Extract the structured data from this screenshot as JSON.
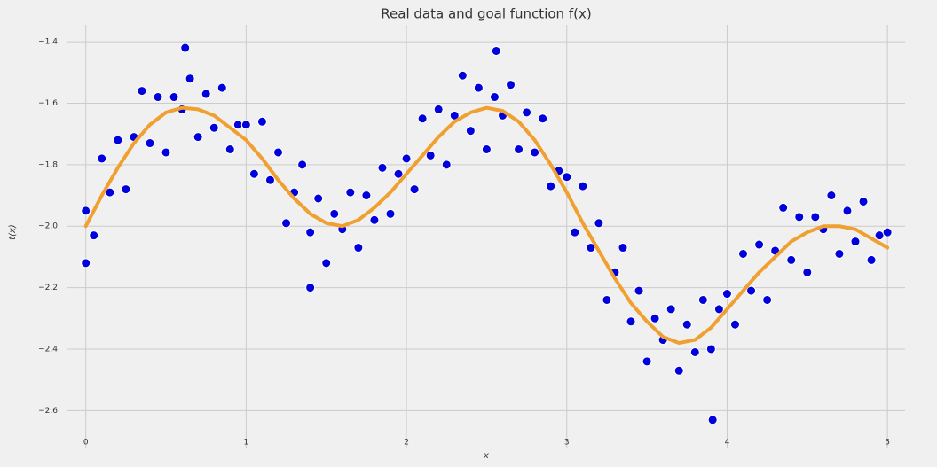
{
  "chart_data": {
    "type": "scatter",
    "title": "Real data and goal function f(x)",
    "xlabel": "x",
    "ylabel": "t(x)",
    "xlim": [
      -0.12,
      5.11
    ],
    "ylim": [
      -2.72,
      -1.345
    ],
    "xticks": [
      0,
      1,
      2,
      3,
      4,
      5
    ],
    "yticks": [
      {
        "value": -1.4,
        "label": "−1.4"
      },
      {
        "value": -1.6,
        "label": "−1.6"
      },
      {
        "value": -1.8,
        "label": "−1.8"
      },
      {
        "value": -2.0,
        "label": "−2.0"
      },
      {
        "value": -2.2,
        "label": "−2.2"
      },
      {
        "value": -2.4,
        "label": "−2.4"
      },
      {
        "value": -2.6,
        "label": "−2.6"
      }
    ],
    "grid": true,
    "series": [
      {
        "type": "scatter",
        "color": "#0000dd",
        "x": [
          0.0,
          0.05,
          0.1,
          0.15,
          0.2,
          0.25,
          0.3,
          0.35,
          0.4,
          0.45,
          0.5,
          0.55,
          0.6,
          0.65,
          0.7,
          0.75,
          0.8,
          0.85,
          0.9,
          0.95,
          1.0,
          1.05,
          1.1,
          1.15,
          1.2,
          1.25,
          1.3,
          1.35,
          1.4,
          1.45,
          1.5,
          1.55,
          1.6,
          1.65,
          1.7,
          1.75,
          1.8,
          1.85,
          1.9,
          1.95,
          2.0,
          2.05,
          2.1,
          2.15,
          2.2,
          2.25,
          2.3,
          2.35,
          2.4,
          2.45,
          2.5,
          2.55,
          2.6,
          2.65,
          2.7,
          2.75,
          2.8,
          2.85,
          2.9,
          2.95,
          3.0,
          3.05,
          3.1,
          3.15,
          3.2,
          3.25,
          3.3,
          3.35,
          3.4,
          3.45,
          3.5,
          3.55,
          3.6,
          3.65,
          3.7,
          3.75,
          3.8,
          3.85,
          3.9,
          3.95,
          4.0,
          4.05,
          4.1,
          4.15,
          4.2,
          4.25,
          4.3,
          4.35,
          4.4,
          4.45,
          4.5,
          4.55,
          4.6,
          4.65,
          4.7,
          4.75,
          4.8,
          4.85,
          4.9,
          4.95,
          5.0,
          3.91,
          0.62,
          2.56,
          1.4,
          0.0
        ],
        "values": [
          -1.95,
          -2.03,
          -1.78,
          -1.89,
          -1.72,
          -1.88,
          -1.71,
          -1.56,
          -1.73,
          -1.58,
          -1.76,
          -1.58,
          -1.62,
          -1.52,
          -1.71,
          -1.57,
          -1.68,
          -1.55,
          -1.75,
          -1.67,
          -1.67,
          -1.83,
          -1.66,
          -1.85,
          -1.76,
          -1.99,
          -1.89,
          -1.8,
          -2.02,
          -1.91,
          -2.12,
          -1.96,
          -2.01,
          -1.89,
          -2.07,
          -1.9,
          -1.98,
          -1.81,
          -1.96,
          -1.83,
          -1.78,
          -1.88,
          -1.65,
          -1.77,
          -1.62,
          -1.8,
          -1.64,
          -1.51,
          -1.69,
          -1.55,
          -1.75,
          -1.58,
          -1.64,
          -1.54,
          -1.75,
          -1.63,
          -1.76,
          -1.65,
          -1.87,
          -1.82,
          -1.84,
          -2.02,
          -1.87,
          -2.07,
          -1.99,
          -2.24,
          -2.15,
          -2.07,
          -2.31,
          -2.21,
          -2.44,
          -2.3,
          -2.37,
          -2.27,
          -2.47,
          -2.32,
          -2.41,
          -2.24,
          -2.4,
          -2.27,
          -2.22,
          -2.32,
          -2.09,
          -2.21,
          -2.06,
          -2.24,
          -2.08,
          -1.94,
          -2.11,
          -1.97,
          -2.15,
          -1.97,
          -2.01,
          -1.9,
          -2.09,
          -1.95,
          -2.05,
          -1.92,
          -2.11,
          -2.03,
          -2.02,
          -2.63,
          -1.42,
          -1.43,
          -2.2,
          -2.12
        ]
      },
      {
        "type": "line",
        "color": "#f0a030",
        "x": [
          0.0,
          0.1,
          0.2,
          0.3,
          0.4,
          0.5,
          0.6,
          0.7,
          0.8,
          0.9,
          1.0,
          1.1,
          1.2,
          1.3,
          1.4,
          1.5,
          1.6,
          1.7,
          1.8,
          1.9,
          2.0,
          2.1,
          2.2,
          2.3,
          2.4,
          2.5,
          2.6,
          2.7,
          2.8,
          2.9,
          3.0,
          3.1,
          3.2,
          3.3,
          3.4,
          3.5,
          3.6,
          3.7,
          3.8,
          3.9,
          4.0,
          4.1,
          4.2,
          4.3,
          4.4,
          4.5,
          4.6,
          4.7,
          4.8,
          4.9,
          5.0
        ],
        "values": [
          -2.0,
          -1.9,
          -1.81,
          -1.73,
          -1.67,
          -1.63,
          -1.615,
          -1.62,
          -1.64,
          -1.68,
          -1.72,
          -1.78,
          -1.85,
          -1.91,
          -1.96,
          -1.99,
          -2.0,
          -1.98,
          -1.94,
          -1.89,
          -1.83,
          -1.77,
          -1.71,
          -1.66,
          -1.63,
          -1.615,
          -1.625,
          -1.66,
          -1.72,
          -1.8,
          -1.89,
          -1.99,
          -2.08,
          -2.17,
          -2.25,
          -2.31,
          -2.36,
          -2.38,
          -2.37,
          -2.33,
          -2.27,
          -2.21,
          -2.15,
          -2.1,
          -2.05,
          -2.02,
          -2.0,
          -2.0,
          -2.01,
          -2.04,
          -2.07
        ]
      }
    ]
  }
}
